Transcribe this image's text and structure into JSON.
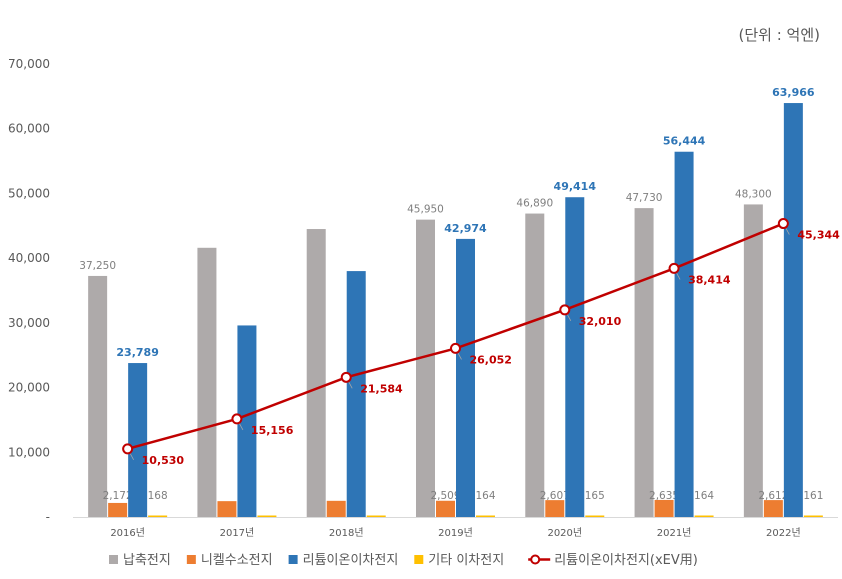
{
  "unit_label": "(단위 : 억엔)",
  "chart_data": {
    "type": "bar",
    "categories": [
      "2016년",
      "2017년",
      "2018년",
      "2019년",
      "2020년",
      "2021년",
      "2022년"
    ],
    "ylim": [
      0,
      70000
    ],
    "yticks": [
      "-",
      "10,000",
      "20,000",
      "30,000",
      "40,000",
      "50,000",
      "60,000",
      "70,000"
    ],
    "grid": false,
    "legend_position": "bottom",
    "series": [
      {
        "name": "납축전지",
        "kind": "bar",
        "color": "#aeaaaa",
        "values": [
          37250,
          41600,
          44500,
          45950,
          46890,
          47730,
          48300
        ],
        "labels": [
          "37,250",
          "",
          "",
          "45,950",
          "46,890",
          "47,730",
          "48,300"
        ],
        "label_color": "#7f7f7f"
      },
      {
        "name": "니켈수소전지",
        "kind": "bar",
        "color": "#ed7d31",
        "values": [
          2172,
          2450,
          2500,
          2509,
          2607,
          2635,
          2612
        ],
        "labels": [
          "2,172",
          "",
          "",
          "2,509",
          "2,607",
          "2,635",
          "2,612"
        ],
        "label_color": "#7f7f7f"
      },
      {
        "name": "리튬이온이차전지",
        "kind": "bar",
        "color": "#2e75b6",
        "values": [
          23789,
          29600,
          38000,
          42974,
          49414,
          56444,
          63966
        ],
        "labels": [
          "23,789",
          "",
          "",
          "42,974",
          "49,414",
          "56,444",
          "63,966"
        ],
        "label_color": "#2e75b6"
      },
      {
        "name": "기타 이차전지",
        "kind": "bar",
        "color": "#ffc000",
        "values": [
          168,
          165,
          165,
          164,
          165,
          164,
          161
        ],
        "labels": [
          "168",
          "",
          "",
          "164",
          "165",
          "164",
          "161"
        ],
        "label_color": "#7f7f7f"
      },
      {
        "name": "리튬이온이차전지(xEV用)",
        "kind": "line",
        "color": "#c00000",
        "values": [
          10530,
          15156,
          21584,
          26052,
          32010,
          38414,
          45344
        ],
        "labels": [
          "10,530",
          "15,156",
          "21,584",
          "26,052",
          "32,010",
          "38,414",
          "45,344"
        ],
        "label_color": "#c00000"
      }
    ]
  }
}
